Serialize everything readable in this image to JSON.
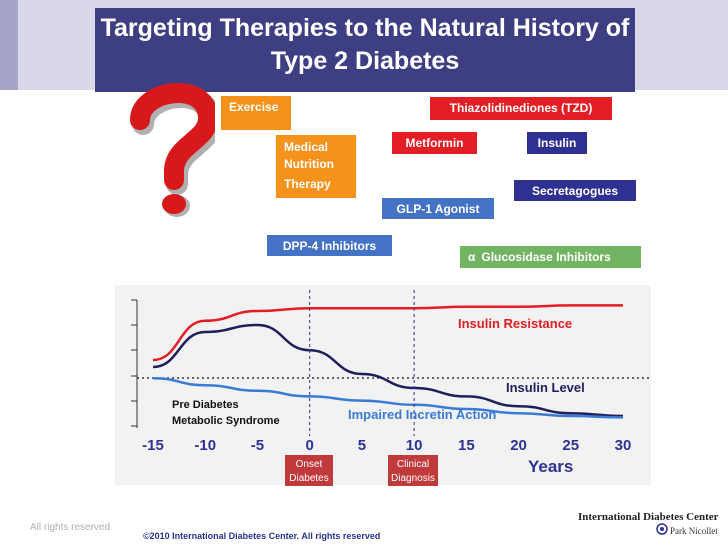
{
  "title": "Targeting Therapies to the Natural History of Type 2 Diabetes",
  "therapies": {
    "exercise": "Exercise",
    "medical_nutrition": [
      "Medical",
      "Nutrition",
      "Therapy"
    ],
    "tzd": "Thiazolidinediones (TZD)",
    "metformin": "Metformin",
    "insulin": "Insulin",
    "secretagogues": "Secretagogues",
    "glp1": "GLP-1 Agonist",
    "dpp4": "DPP-4 Inhibitors",
    "alpha_symbol": "α",
    "alpha_glucosidase": "Glucosidase Inhibitors"
  },
  "colors": {
    "title_bg": "#3e3e82",
    "orange": "#f5921b",
    "red": "#e31e24",
    "navy": "#2e3192",
    "blue": "#4472c4",
    "green": "#73b463",
    "insulin_resistance": "#e31e24",
    "insulin_level": "#1f1f5c",
    "incretin": "#3a7bd5"
  },
  "chart": {
    "x_ticks": [
      "-15",
      "-10",
      "-5",
      "0",
      "5",
      "10",
      "15",
      "20",
      "25",
      "30"
    ],
    "x_label": "Years",
    "markers": {
      "onset": [
        "Onset",
        "Diabetes"
      ],
      "clinical": [
        "Clinical",
        "Diagnosis"
      ]
    },
    "labels": {
      "insulin_resistance": "Insulin Resistance",
      "insulin_level": "Insulin Level",
      "incretin": "Impaired Incretin Action",
      "pre_diabetes": [
        "Pre Diabetes",
        "Metabolic Syndrome"
      ]
    }
  },
  "chart_data": {
    "type": "line",
    "x_range": [
      -15,
      30
    ],
    "series": [
      {
        "name": "Insulin Resistance",
        "x": [
          -15,
          -10,
          -5,
          0,
          5,
          10,
          15,
          20,
          25,
          30
        ],
        "y": [
          0.5,
          0.78,
          0.85,
          0.87,
          0.87,
          0.87,
          0.88,
          0.88,
          0.89,
          0.89
        ]
      },
      {
        "name": "Insulin Level",
        "x": [
          -15,
          -10,
          -5,
          0,
          5,
          10,
          15,
          20,
          25,
          30
        ],
        "y": [
          0.45,
          0.7,
          0.75,
          0.57,
          0.4,
          0.3,
          0.24,
          0.17,
          0.12,
          0.1
        ]
      },
      {
        "name": "Impaired Incretin Action",
        "x": [
          -15,
          -10,
          -5,
          0,
          5,
          10,
          15,
          20,
          25,
          30
        ],
        "y": [
          0.37,
          0.32,
          0.28,
          0.24,
          0.21,
          0.18,
          0.15,
          0.12,
          0.1,
          0.09
        ]
      }
    ],
    "reference_lines_x": [
      0,
      10
    ],
    "grid": false
  },
  "footer": {
    "rights": "All rights reserved",
    "copyright": "©2010 International Diabetes Center.  All rights reserved",
    "logo_main": "International Diabetes Center",
    "logo_sub": "Park Nicollet"
  }
}
